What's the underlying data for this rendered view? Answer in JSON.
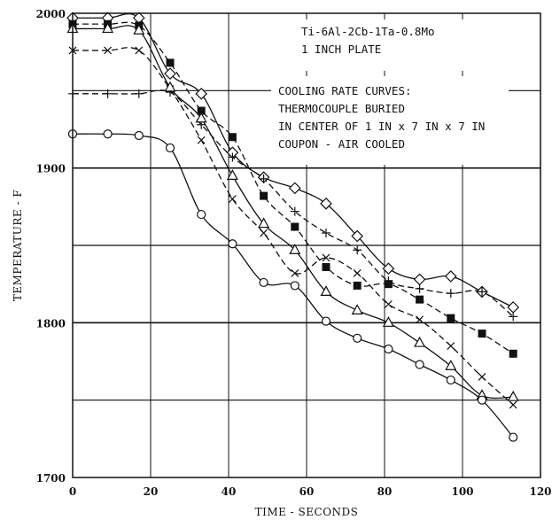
{
  "chart_data": {
    "type": "scatter",
    "xlabel": "TIME - SECONDS",
    "ylabel": "TEMPERATURE - F",
    "xlim": [
      0,
      120
    ],
    "ylim": [
      1700,
      2000
    ],
    "x_ticks": [
      0,
      20,
      40,
      60,
      80,
      100,
      120
    ],
    "y_ticks": [
      1700,
      1800,
      1900,
      2000
    ],
    "grid": "horizontal",
    "annotations": [
      "Ti-6Al-2Cb-1Ta-0.8Mo",
      "1 INCH PLATE",
      "COOLING RATE CURVES:",
      "THERMOCOUPLE BURIED",
      "IN CENTER OF 1 IN x 7 IN x 7 IN",
      "COUPON - AIR COOLED"
    ],
    "series": [
      {
        "marker": "diamond",
        "line_style": "solid",
        "points": [
          [
            0,
            1997
          ],
          [
            9,
            1997
          ],
          [
            17,
            1997
          ],
          [
            25,
            1961
          ],
          [
            33,
            1948
          ],
          [
            41,
            1910
          ],
          [
            49,
            1894
          ],
          [
            57,
            1887
          ],
          [
            65,
            1877
          ],
          [
            73,
            1856
          ],
          [
            81,
            1835
          ],
          [
            89,
            1828
          ],
          [
            97,
            1830
          ],
          [
            105,
            1820
          ],
          [
            113,
            1810
          ]
        ]
      },
      {
        "marker": "plus",
        "line_style": "dashed",
        "points": [
          [
            0,
            1948
          ],
          [
            9,
            1948
          ],
          [
            17,
            1948
          ],
          [
            25,
            1949
          ],
          [
            33,
            1928
          ],
          [
            41,
            1907
          ],
          [
            49,
            1893
          ],
          [
            57,
            1872
          ],
          [
            65,
            1858
          ],
          [
            73,
            1847
          ],
          [
            81,
            1827
          ],
          [
            89,
            1822
          ],
          [
            97,
            1819
          ],
          [
            105,
            1820
          ],
          [
            113,
            1804
          ]
        ]
      },
      {
        "marker": "filled-square",
        "line_style": "dashed",
        "points": [
          [
            0,
            1993
          ],
          [
            9,
            1993
          ],
          [
            17,
            1992
          ],
          [
            25,
            1968
          ],
          [
            33,
            1937
          ],
          [
            41,
            1920
          ],
          [
            49,
            1882
          ],
          [
            57,
            1862
          ],
          [
            65,
            1836
          ],
          [
            73,
            1824
          ],
          [
            81,
            1825
          ],
          [
            89,
            1815
          ],
          [
            97,
            1803
          ],
          [
            105,
            1793
          ],
          [
            113,
            1780
          ]
        ]
      },
      {
        "marker": "x",
        "line_style": "dashed",
        "points": [
          [
            0,
            1976
          ],
          [
            9,
            1976
          ],
          [
            17,
            1976
          ],
          [
            25,
            1951
          ],
          [
            33,
            1918
          ],
          [
            41,
            1880
          ],
          [
            49,
            1858
          ],
          [
            57,
            1832
          ],
          [
            65,
            1842
          ],
          [
            73,
            1832
          ],
          [
            81,
            1812
          ],
          [
            89,
            1802
          ],
          [
            97,
            1785
          ],
          [
            105,
            1765
          ],
          [
            113,
            1747
          ]
        ]
      },
      {
        "marker": "triangle",
        "line_style": "solid",
        "points": [
          [
            0,
            1990
          ],
          [
            9,
            1990
          ],
          [
            17,
            1989
          ],
          [
            25,
            1952
          ],
          [
            33,
            1932
          ],
          [
            41,
            1895
          ],
          [
            49,
            1864
          ],
          [
            57,
            1847
          ],
          [
            65,
            1820
          ],
          [
            73,
            1808
          ],
          [
            81,
            1800
          ],
          [
            89,
            1787
          ],
          [
            97,
            1772
          ],
          [
            105,
            1753
          ],
          [
            113,
            1752
          ]
        ]
      },
      {
        "marker": "circle",
        "line_style": "solid",
        "points": [
          [
            0,
            1922
          ],
          [
            9,
            1922
          ],
          [
            17,
            1921
          ],
          [
            25,
            1913
          ],
          [
            33,
            1870
          ],
          [
            41,
            1851
          ],
          [
            49,
            1826
          ],
          [
            57,
            1824
          ],
          [
            65,
            1801
          ],
          [
            73,
            1790
          ],
          [
            81,
            1783
          ],
          [
            89,
            1773
          ],
          [
            97,
            1763
          ],
          [
            105,
            1750
          ],
          [
            113,
            1726
          ]
        ]
      }
    ]
  }
}
